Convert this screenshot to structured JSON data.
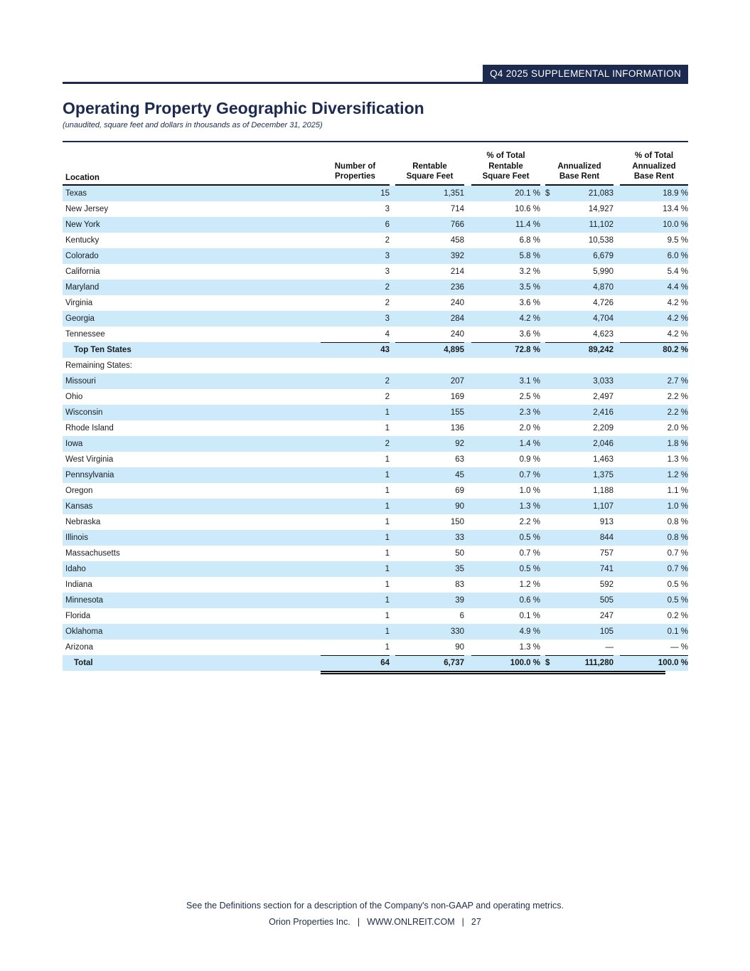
{
  "banner": {
    "label": "Q4 2025 SUPPLEMENTAL INFORMATION"
  },
  "header": {
    "title": "Operating Property Geographic Diversification",
    "subtitle": "(unaudited, square feet and dollars in thousands as of December 31, 2025)"
  },
  "colors": {
    "navy": "#1b2a4e",
    "row_stripe": "#cdeafa",
    "rule_black": "#101010"
  },
  "table": {
    "columns": [
      {
        "label": "Location"
      },
      {
        "label": "Number of\nProperties"
      },
      {
        "label": "Rentable\nSquare Feet"
      },
      {
        "label": "% of Total\nRentable\nSquare Feet"
      },
      {
        "label": "Annualized\nBase Rent"
      },
      {
        "label": "% of Total\nAnnualized\nBase Rent"
      }
    ],
    "rows": [
      {
        "location": "Texas",
        "properties": "15",
        "sqft": "1,351",
        "sqft_pct": "20.1 %",
        "currency": "$",
        "rent": "21,083",
        "rent_pct": "18.9 %",
        "type": "data"
      },
      {
        "location": "New Jersey",
        "properties": "3",
        "sqft": "714",
        "sqft_pct": "10.6 %",
        "currency": "",
        "rent": "14,927",
        "rent_pct": "13.4 %",
        "type": "data"
      },
      {
        "location": "New York",
        "properties": "6",
        "sqft": "766",
        "sqft_pct": "11.4 %",
        "currency": "",
        "rent": "11,102",
        "rent_pct": "10.0 %",
        "type": "data"
      },
      {
        "location": "Kentucky",
        "properties": "2",
        "sqft": "458",
        "sqft_pct": "6.8 %",
        "currency": "",
        "rent": "10,538",
        "rent_pct": "9.5 %",
        "type": "data"
      },
      {
        "location": "Colorado",
        "properties": "3",
        "sqft": "392",
        "sqft_pct": "5.8 %",
        "currency": "",
        "rent": "6,679",
        "rent_pct": "6.0 %",
        "type": "data"
      },
      {
        "location": "California",
        "properties": "3",
        "sqft": "214",
        "sqft_pct": "3.2 %",
        "currency": "",
        "rent": "5,990",
        "rent_pct": "5.4 %",
        "type": "data"
      },
      {
        "location": "Maryland",
        "properties": "2",
        "sqft": "236",
        "sqft_pct": "3.5 %",
        "currency": "",
        "rent": "4,870",
        "rent_pct": "4.4 %",
        "type": "data"
      },
      {
        "location": "Virginia",
        "properties": "2",
        "sqft": "240",
        "sqft_pct": "3.6 %",
        "currency": "",
        "rent": "4,726",
        "rent_pct": "4.2 %",
        "type": "data"
      },
      {
        "location": "Georgia",
        "properties": "3",
        "sqft": "284",
        "sqft_pct": "4.2 %",
        "currency": "",
        "rent": "4,704",
        "rent_pct": "4.2 %",
        "type": "data"
      },
      {
        "location": "Tennessee",
        "properties": "4",
        "sqft": "240",
        "sqft_pct": "3.6 %",
        "currency": "",
        "rent": "4,623",
        "rent_pct": "4.2 %",
        "type": "data"
      },
      {
        "location": "Top Ten States",
        "properties": "43",
        "sqft": "4,895",
        "sqft_pct": "72.8 %",
        "currency": "",
        "rent": "89,242",
        "rent_pct": "80.2 %",
        "type": "subtotal"
      },
      {
        "location": "Remaining States:",
        "properties": "",
        "sqft": "",
        "sqft_pct": "",
        "currency": "",
        "rent": "",
        "rent_pct": "",
        "type": "section"
      },
      {
        "location": "Missouri",
        "properties": "2",
        "sqft": "207",
        "sqft_pct": "3.1 %",
        "currency": "",
        "rent": "3,033",
        "rent_pct": "2.7 %",
        "type": "data"
      },
      {
        "location": "Ohio",
        "properties": "2",
        "sqft": "169",
        "sqft_pct": "2.5 %",
        "currency": "",
        "rent": "2,497",
        "rent_pct": "2.2 %",
        "type": "data"
      },
      {
        "location": "Wisconsin",
        "properties": "1",
        "sqft": "155",
        "sqft_pct": "2.3 %",
        "currency": "",
        "rent": "2,416",
        "rent_pct": "2.2 %",
        "type": "data"
      },
      {
        "location": "Rhode Island",
        "properties": "1",
        "sqft": "136",
        "sqft_pct": "2.0 %",
        "currency": "",
        "rent": "2,209",
        "rent_pct": "2.0 %",
        "type": "data"
      },
      {
        "location": "Iowa",
        "properties": "2",
        "sqft": "92",
        "sqft_pct": "1.4 %",
        "currency": "",
        "rent": "2,046",
        "rent_pct": "1.8 %",
        "type": "data"
      },
      {
        "location": "West Virginia",
        "properties": "1",
        "sqft": "63",
        "sqft_pct": "0.9 %",
        "currency": "",
        "rent": "1,463",
        "rent_pct": "1.3 %",
        "type": "data"
      },
      {
        "location": "Pennsylvania",
        "properties": "1",
        "sqft": "45",
        "sqft_pct": "0.7 %",
        "currency": "",
        "rent": "1,375",
        "rent_pct": "1.2 %",
        "type": "data"
      },
      {
        "location": "Oregon",
        "properties": "1",
        "sqft": "69",
        "sqft_pct": "1.0 %",
        "currency": "",
        "rent": "1,188",
        "rent_pct": "1.1 %",
        "type": "data"
      },
      {
        "location": "Kansas",
        "properties": "1",
        "sqft": "90",
        "sqft_pct": "1.3 %",
        "currency": "",
        "rent": "1,107",
        "rent_pct": "1.0 %",
        "type": "data"
      },
      {
        "location": "Nebraska",
        "properties": "1",
        "sqft": "150",
        "sqft_pct": "2.2 %",
        "currency": "",
        "rent": "913",
        "rent_pct": "0.8 %",
        "type": "data"
      },
      {
        "location": "Illinois",
        "properties": "1",
        "sqft": "33",
        "sqft_pct": "0.5 %",
        "currency": "",
        "rent": "844",
        "rent_pct": "0.8 %",
        "type": "data"
      },
      {
        "location": "Massachusetts",
        "properties": "1",
        "sqft": "50",
        "sqft_pct": "0.7 %",
        "currency": "",
        "rent": "757",
        "rent_pct": "0.7 %",
        "type": "data"
      },
      {
        "location": "Idaho",
        "properties": "1",
        "sqft": "35",
        "sqft_pct": "0.5 %",
        "currency": "",
        "rent": "741",
        "rent_pct": "0.7 %",
        "type": "data"
      },
      {
        "location": "Indiana",
        "properties": "1",
        "sqft": "83",
        "sqft_pct": "1.2 %",
        "currency": "",
        "rent": "592",
        "rent_pct": "0.5 %",
        "type": "data"
      },
      {
        "location": "Minnesota",
        "properties": "1",
        "sqft": "39",
        "sqft_pct": "0.6 %",
        "currency": "",
        "rent": "505",
        "rent_pct": "0.5 %",
        "type": "data"
      },
      {
        "location": "Florida",
        "properties": "1",
        "sqft": "6",
        "sqft_pct": "0.1 %",
        "currency": "",
        "rent": "247",
        "rent_pct": "0.2 %",
        "type": "data"
      },
      {
        "location": "Oklahoma",
        "properties": "1",
        "sqft": "330",
        "sqft_pct": "4.9 %",
        "currency": "",
        "rent": "105",
        "rent_pct": "0.1 %",
        "type": "data"
      },
      {
        "location": "Arizona",
        "properties": "1",
        "sqft": "90",
        "sqft_pct": "1.3 %",
        "currency": "",
        "rent": "—",
        "rent_pct": "— %",
        "type": "data"
      },
      {
        "location": "Total",
        "properties": "64",
        "sqft": "6,737",
        "sqft_pct": "100.0 %",
        "currency": "$",
        "rent": "111,280",
        "rent_pct": "100.0 %",
        "type": "total"
      }
    ]
  },
  "footer": {
    "note": "See the Definitions section for a description of the Company's non-GAAP and operating metrics.",
    "company": "Orion Properties Inc.",
    "separator": "|",
    "url": "WWW.ONLREIT.COM",
    "page_number": "27"
  }
}
